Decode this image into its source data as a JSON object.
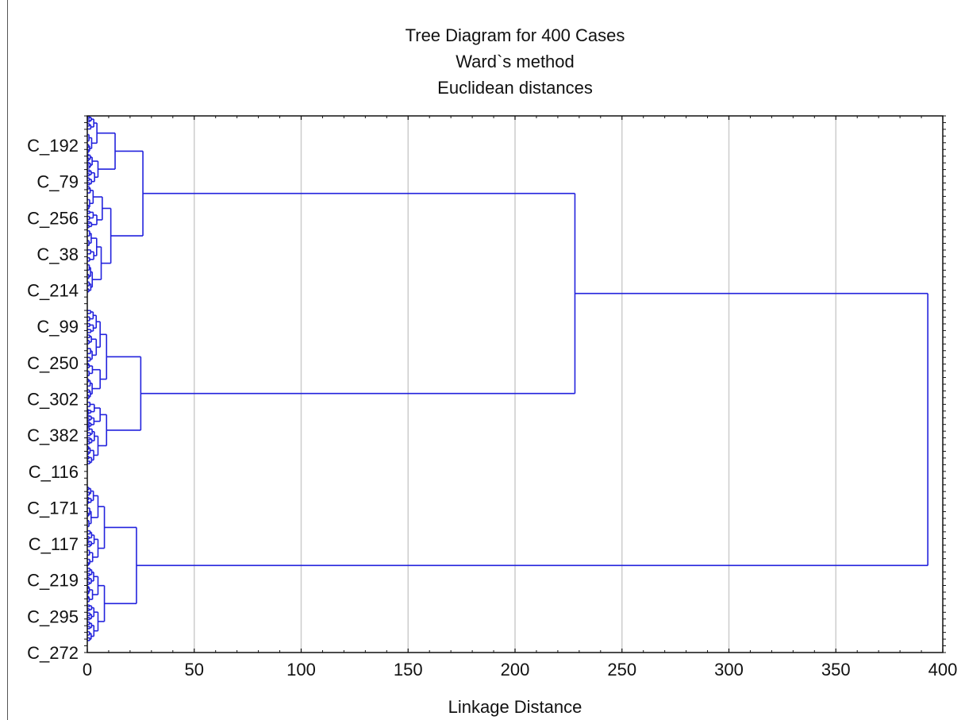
{
  "chart_data": {
    "type": "dendrogram",
    "title": "Tree Diagram for 400 Cases",
    "subtitles": [
      "Ward`s method",
      "Euclidean distances"
    ],
    "xlabel": "Linkage Distance",
    "xlim": [
      0,
      400
    ],
    "x_ticks": [
      0,
      50,
      100,
      150,
      200,
      250,
      300,
      350,
      400
    ],
    "grid": true,
    "orientation": "horizontal",
    "n_cases": 400,
    "case_labels": [
      "C_192",
      "C_79",
      "C_256",
      "C_38",
      "C_214",
      "C_99",
      "C_250",
      "C_302",
      "C_382",
      "C_116",
      "C_171",
      "C_117",
      "C_219",
      "C_295",
      "C_272"
    ],
    "major_merges": [
      {
        "id": "A",
        "distance": 13,
        "children": [
          "leaf-band 0-0.07",
          "leaf-band 0.07-0.13"
        ]
      },
      {
        "id": "B",
        "distance": 11,
        "children": [
          "leaf-band 0.13-0.21",
          "leaf-band 0.21-0.33"
        ]
      },
      {
        "id": "C",
        "distance": 26,
        "children": [
          "A",
          "B"
        ]
      },
      {
        "id": "D",
        "distance": 9,
        "children": [
          "leaf-band 0.36-0.46",
          "leaf-band 0.46-0.53"
        ]
      },
      {
        "id": "E",
        "distance": 9,
        "children": [
          "leaf-band 0.53-0.58",
          "leaf-band 0.58-0.65"
        ]
      },
      {
        "id": "F",
        "distance": 25,
        "children": [
          "D",
          "E"
        ]
      },
      {
        "id": "G",
        "distance": 228,
        "children": [
          "C",
          "F"
        ]
      },
      {
        "id": "H",
        "distance": 8,
        "children": [
          "leaf-band 0.69-0.77",
          "leaf-band 0.77-0.84"
        ]
      },
      {
        "id": "I",
        "distance": 8,
        "children": [
          "leaf-band 0.84-0.91",
          "leaf-band 0.91-0.98"
        ]
      },
      {
        "id": "J",
        "distance": 23,
        "children": [
          "H",
          "I"
        ]
      },
      {
        "id": "K",
        "distance": 393,
        "children": [
          "G",
          "J"
        ]
      }
    ],
    "color": "#2222dd",
    "grid_color": "#cccccc"
  }
}
